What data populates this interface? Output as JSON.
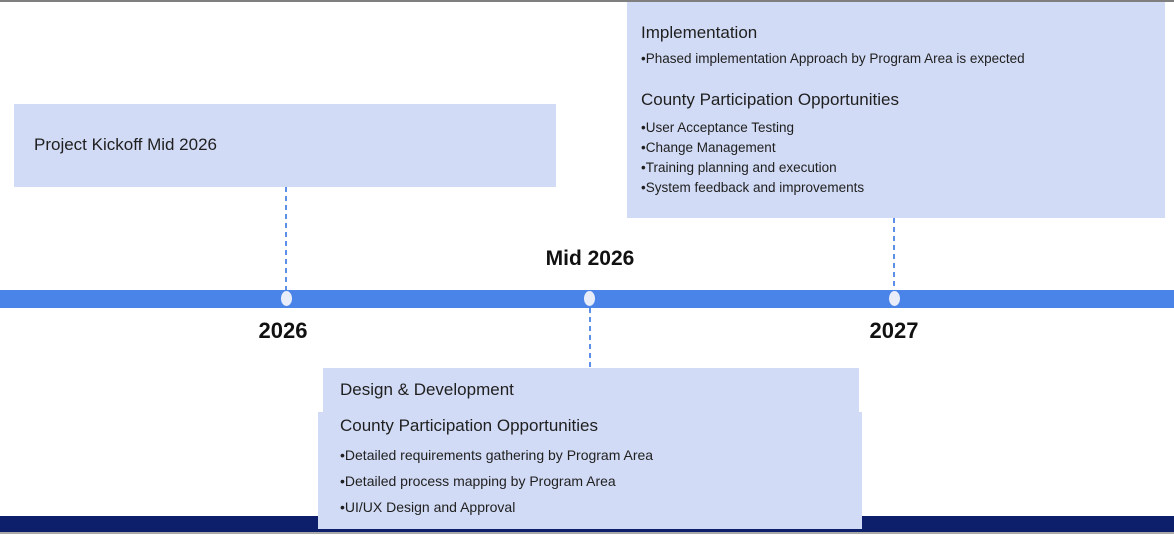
{
  "slide": {
    "kind": "project-timeline"
  },
  "timeline": {
    "bar_color": "#4a84e8",
    "navy_band_color": "#0d1f6b",
    "box_fill_color": "#d2dbf5",
    "connector_color": "#5b8fe8",
    "dot_color": "#e9edfa",
    "labels": {
      "mid_2026": "Mid 2026",
      "year_2026": "2026",
      "year_2027": "2027"
    },
    "milestones": [
      {
        "name": "project-kickoff",
        "label_below": "2026"
      },
      {
        "name": "design-development",
        "label_above": "Mid 2026"
      },
      {
        "name": "implementation",
        "label_below": "2027"
      }
    ]
  },
  "boxes": {
    "kickoff": {
      "title": "Project Kickoff Mid 2026"
    },
    "implementation": {
      "title": "Implementation",
      "bullets": [
        "•Phased implementation Approach by Program Area is expected"
      ],
      "subtitle": "County Participation Opportunities",
      "sub_bullets": [
        "•User Acceptance Testing",
        "•Change Management",
        "•Training planning and execution",
        "•System feedback and improvements"
      ]
    },
    "design": {
      "title": "Design & Development",
      "subtitle": "County Participation Opportunities",
      "bullets": [
        "•Detailed requirements gathering by Program Area",
        "•Detailed process mapping by Program Area",
        "•UI/UX Design and Approval"
      ]
    }
  }
}
